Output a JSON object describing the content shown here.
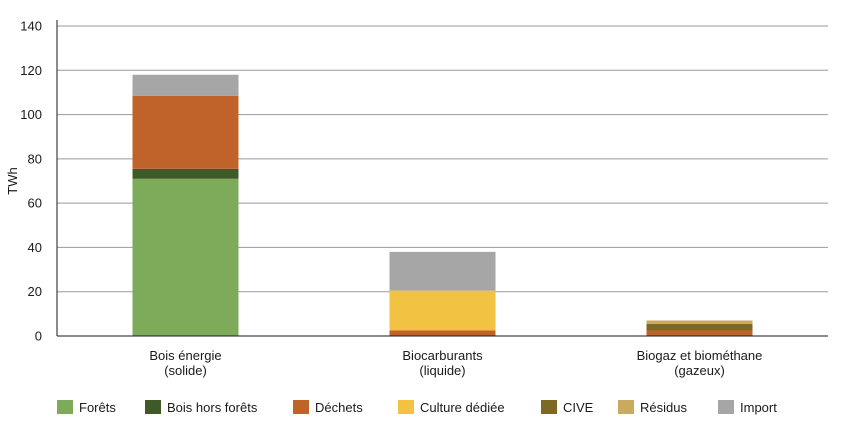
{
  "chart_data": {
    "type": "bar",
    "stacked": true,
    "ylabel": "TWh",
    "ylim": [
      0,
      140
    ],
    "yticks": [
      0,
      20,
      40,
      60,
      80,
      100,
      120,
      140
    ],
    "grid": true,
    "legend_position": "bottom",
    "categories": [
      [
        "Bois énergie",
        "(solide)"
      ],
      [
        "Biocarburants",
        "(liquide)"
      ],
      [
        "Biogaz et biométhane",
        "(gazeux)"
      ]
    ],
    "series": [
      {
        "name": "Forêts",
        "color": "#7dab5a",
        "values": [
          71,
          0,
          0
        ]
      },
      {
        "name": "Bois hors forêts",
        "color": "#3f5a26",
        "values": [
          4.5,
          0,
          0
        ]
      },
      {
        "name": "Déchets",
        "color": "#c0632b",
        "values": [
          33,
          2.5,
          2.5
        ]
      },
      {
        "name": "Culture dédiée",
        "color": "#f2c243",
        "values": [
          0,
          18,
          0
        ]
      },
      {
        "name": "CIVE",
        "color": "#7c6a24",
        "values": [
          0,
          0,
          3
        ]
      },
      {
        "name": "Résidus",
        "color": "#c9aa5e",
        "values": [
          0,
          0,
          1.5
        ]
      },
      {
        "name": "Import",
        "color": "#a6a6a6",
        "values": [
          9.5,
          17.5,
          0
        ]
      }
    ]
  }
}
